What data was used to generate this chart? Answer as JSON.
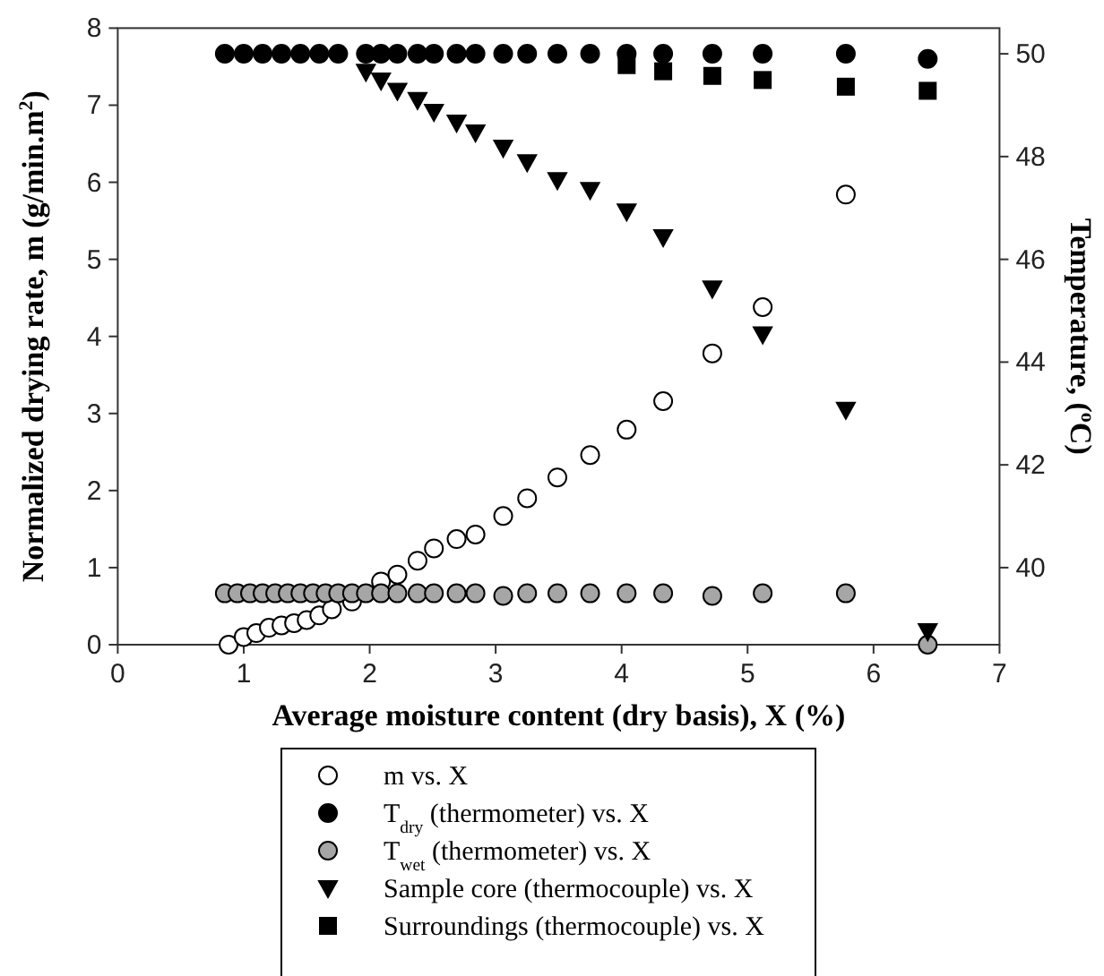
{
  "chart_data": {
    "type": "scatter",
    "xlabel": "Average moisture content (dry basis), X (%)",
    "ylabel": "Normalized drying rate, m (g/min.m$^{2}$)",
    "y2label": "Temperature, ($^{o}$C)",
    "xlim": [
      0,
      7
    ],
    "xticks": [
      0,
      1,
      2,
      3,
      4,
      5,
      6,
      7
    ],
    "ylim": [
      0,
      8
    ],
    "yticks": [
      0,
      1,
      2,
      3,
      4,
      5,
      6,
      7,
      8
    ],
    "y2lim": [
      38.5,
      50.5
    ],
    "y2ticks": [
      40,
      42,
      44,
      46,
      48,
      50
    ],
    "grid": false,
    "legend": "bottom",
    "series": [
      {
        "name": "m vs. X",
        "color": "#ffffff",
        "marker": "circle",
        "x": [
          0.88,
          1.0,
          1.1,
          1.2,
          1.3,
          1.4,
          1.5,
          1.6,
          1.7,
          1.86,
          2.09,
          2.22,
          2.38,
          2.51,
          2.69,
          2.84,
          3.06,
          3.25,
          3.49,
          3.75,
          4.04,
          4.33,
          4.72,
          5.12,
          5.78
        ],
        "values": [
          0,
          0.1,
          0.15,
          0.22,
          0.25,
          0.28,
          0.32,
          0.38,
          0.46,
          0.56,
          0.82,
          0.91,
          1.09,
          1.25,
          1.37,
          1.43,
          1.67,
          1.9,
          2.17,
          2.46,
          2.79,
          3.16,
          3.78,
          4.38,
          5.84
        ]
      },
      {
        "name": "T$_{dry}$ (thermometer) vs. X",
        "color": "#000000",
        "marker": "circle",
        "axis": "y2",
        "x": [
          0.85,
          1.0,
          1.15,
          1.3,
          1.45,
          1.6,
          1.75,
          1.97,
          2.09,
          2.22,
          2.38,
          2.51,
          2.69,
          2.84,
          3.06,
          3.25,
          3.49,
          3.75,
          4.04,
          4.33,
          4.72,
          5.12,
          5.78,
          6.43
        ],
        "values": [
          50,
          50,
          50,
          50,
          50,
          50,
          50,
          50,
          50,
          50,
          50,
          50,
          50,
          50,
          50,
          50,
          50,
          50,
          50,
          50,
          50,
          50,
          50,
          49.9
        ]
      },
      {
        "name": "T$_{wet}$ (thermometer) vs. X",
        "color": "#a6a6a6",
        "marker": "circle",
        "axis": "y2",
        "x": [
          0.85,
          0.95,
          1.05,
          1.15,
          1.25,
          1.35,
          1.45,
          1.55,
          1.65,
          1.75,
          1.86,
          1.97,
          2.09,
          2.22,
          2.38,
          2.51,
          2.69,
          2.84,
          3.06,
          3.25,
          3.49,
          3.75,
          4.04,
          4.33,
          4.72,
          5.12,
          5.78,
          6.43
        ],
        "values": [
          39.5,
          39.5,
          39.5,
          39.5,
          39.5,
          39.5,
          39.5,
          39.5,
          39.5,
          39.5,
          39.5,
          39.5,
          39.5,
          39.5,
          39.5,
          39.5,
          39.5,
          39.5,
          39.45,
          39.5,
          39.5,
          39.5,
          39.5,
          39.5,
          39.45,
          39.5,
          39.5,
          38.5
        ]
      },
      {
        "name": "Sample core (thermocouple) vs. X",
        "color": "#000000",
        "marker": "triangle",
        "axis": "y2",
        "x": [
          1.97,
          2.09,
          2.22,
          2.38,
          2.51,
          2.69,
          2.84,
          3.06,
          3.25,
          3.49,
          3.75,
          4.04,
          4.33,
          4.72,
          5.12,
          5.78,
          6.43
        ],
        "values": [
          49.65,
          49.48,
          49.28,
          49.1,
          48.87,
          48.66,
          48.47,
          48.17,
          47.89,
          47.54,
          47.35,
          46.93,
          46.43,
          45.43,
          44.54,
          43.07,
          38.76
        ]
      },
      {
        "name": "Surroundings (thermocouple) vs. X",
        "color": "#000000",
        "marker": "square",
        "axis": "y2",
        "x": [
          4.04,
          4.33,
          4.72,
          5.12,
          5.78,
          6.43
        ],
        "values": [
          49.78,
          49.66,
          49.57,
          49.49,
          49.36,
          49.28
        ]
      }
    ]
  }
}
